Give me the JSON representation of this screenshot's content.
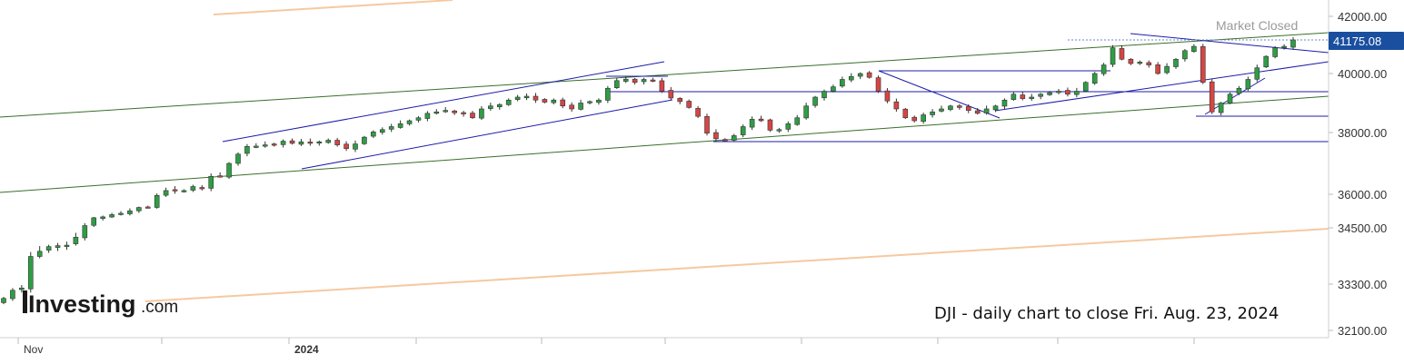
{
  "header": {
    "status": "Market Closed",
    "last_price": "41175.08"
  },
  "caption": "DJI - daily chart to close Fri. Aug. 23, 2024",
  "brand": {
    "name": "Investing",
    "suffix": ".com"
  },
  "colors": {
    "up": "#2e9e44",
    "down": "#d64545",
    "price_tag": "#1a4fa0",
    "trendline_blue": "#1c1ca8",
    "trendline_green": "#3a6e2a",
    "trendline_orange": "#f5c9a0"
  },
  "chart_data": {
    "type": "candlestick",
    "title": "",
    "xlabel": "",
    "ylabel": "",
    "x_ticks": [
      {
        "label": "Nov",
        "bold": false
      },
      {
        "label": "",
        "bold": false
      },
      {
        "label": "2024",
        "bold": true
      },
      {
        "label": "",
        "bold": false
      },
      {
        "label": "",
        "bold": false
      },
      {
        "label": "",
        "bold": false
      },
      {
        "label": "",
        "bold": false
      },
      {
        "label": "",
        "bold": false
      },
      {
        "label": "",
        "bold": false
      },
      {
        "label": "",
        "bold": false
      }
    ],
    "y_ticks": [
      "42000.00",
      "40000.00",
      "38000.00",
      "36000.00",
      "34500.00",
      "33300.00",
      "32100.00"
    ],
    "y_tick_values": [
      42000,
      40000,
      38000,
      36000,
      34500,
      33300,
      32100
    ],
    "y_axis_scale": "nonlinear (as printed)",
    "approx_daily_closes": [
      32930,
      33140,
      33200,
      33890,
      34000,
      34100,
      34120,
      34130,
      34300,
      34600,
      34950,
      34990,
      35090,
      35150,
      35260,
      35410,
      35430,
      35950,
      36120,
      36110,
      36120,
      36250,
      36200,
      36580,
      36580,
      37000,
      37300,
      37550,
      37560,
      37600,
      37620,
      37720,
      37650,
      37700,
      37650,
      37700,
      37750,
      37600,
      37480,
      37630,
      37850,
      38020,
      38100,
      38200,
      38300,
      38400,
      38500,
      38650,
      38700,
      38750,
      38670,
      38630,
      38500,
      38800,
      38900,
      38950,
      39100,
      39200,
      39230,
      39100,
      39030,
      39100,
      38900,
      38800,
      39000,
      39050,
      39100,
      39500,
      39760,
      39810,
      39700,
      39800,
      39750,
      39400,
      39170,
      39050,
      38850,
      38550,
      37980,
      37800,
      37750,
      37900,
      38200,
      38450,
      38400,
      38080,
      38100,
      38300,
      38500,
      38900,
      39200,
      39400,
      39550,
      39800,
      39900,
      40000,
      39870,
      39400,
      39070,
      38800,
      38500,
      38400,
      38600,
      38700,
      38800,
      38900,
      38850,
      38750,
      38650,
      38800,
      38900,
      39100,
      39300,
      39150,
      39200,
      39300,
      39350,
      39400,
      39300,
      39400,
      39700,
      40000,
      40300,
      40900,
      40500,
      40350,
      40400,
      40300,
      40000,
      40250,
      40500,
      40800,
      40950,
      39700,
      38700,
      39000,
      39300,
      39500,
      39800,
      40200,
      40600,
      40900,
      40950,
      41175.08
    ],
    "annotations": [
      "Market Closed",
      "41175.08",
      "DJI - daily chart to close Fri. Aug. 23, 2024"
    ],
    "grid": false,
    "legend": "none"
  }
}
